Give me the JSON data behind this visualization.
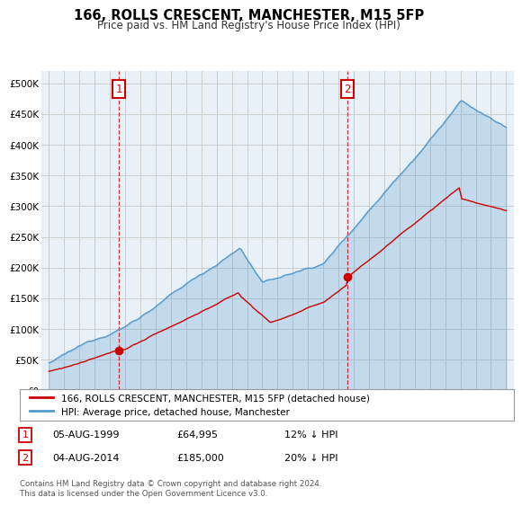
{
  "title": "166, ROLLS CRESCENT, MANCHESTER, M15 5FP",
  "subtitle": "Price paid vs. HM Land Registry's House Price Index (HPI)",
  "ylabel_ticks": [
    "£0",
    "£50K",
    "£100K",
    "£150K",
    "£200K",
    "£250K",
    "£300K",
    "£350K",
    "£400K",
    "£450K",
    "£500K"
  ],
  "ytick_values": [
    0,
    50000,
    100000,
    150000,
    200000,
    250000,
    300000,
    350000,
    400000,
    450000,
    500000
  ],
  "ylim": [
    0,
    520000
  ],
  "xlim_start": 1994.5,
  "xlim_end": 2025.5,
  "sale1_x": 1999.58,
  "sale1_y": 64995,
  "sale2_x": 2014.58,
  "sale2_y": 185000,
  "legend_line1": "166, ROLLS CRESCENT, MANCHESTER, M15 5FP (detached house)",
  "legend_line2": "HPI: Average price, detached house, Manchester",
  "table_row1": [
    "1",
    "05-AUG-1999",
    "£64,995",
    "12% ↓ HPI"
  ],
  "table_row2": [
    "2",
    "04-AUG-2014",
    "£185,000",
    "20% ↓ HPI"
  ],
  "footer": "Contains HM Land Registry data © Crown copyright and database right 2024.\nThis data is licensed under the Open Government Licence v3.0.",
  "line_color_red": "#cc0000",
  "line_color_blue": "#5599cc",
  "fill_color_blue": "#ddeeff",
  "background_color": "#ffffff",
  "grid_color": "#cccccc",
  "annotation_box_color": "#cc0000",
  "chart_bg": "#e8f0f8"
}
